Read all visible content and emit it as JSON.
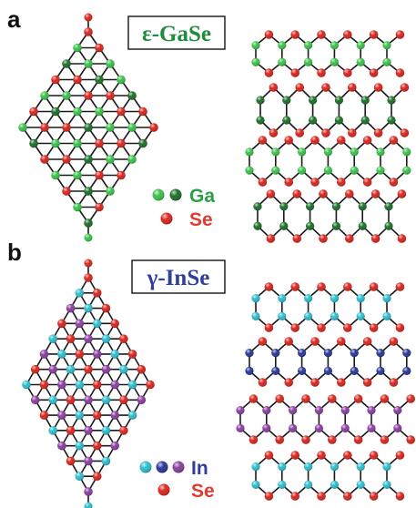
{
  "panels": [
    {
      "letter": "a",
      "title": "ε-GaSe",
      "title_color": "#1e8c3a",
      "legend": [
        {
          "label": "Ga",
          "label_color": "#2aa146",
          "colors": [
            "#3cc04a",
            "#1d6e2a"
          ]
        },
        {
          "label": "Se",
          "label_color": "#e23a2e",
          "colors": [
            "#d8261f"
          ]
        }
      ]
    },
    {
      "letter": "b",
      "title": "γ-InSe",
      "title_color": "#2e3d9e",
      "legend": [
        {
          "label": "In",
          "label_color": "#2e3d9e",
          "colors": [
            "#30bccb",
            "#2a3797",
            "#8a3f9e"
          ]
        },
        {
          "label": "Se",
          "label_color": "#e23a2e",
          "colors": [
            "#d8261f"
          ]
        }
      ]
    }
  ],
  "atom_colors": {
    "se": "#d8261f",
    "ga_light": "#3cc04a",
    "ga_dark": "#1d6e2a",
    "in_cyan": "#30bccb",
    "in_blue": "#2a3797",
    "in_purple": "#8a3f9e"
  }
}
